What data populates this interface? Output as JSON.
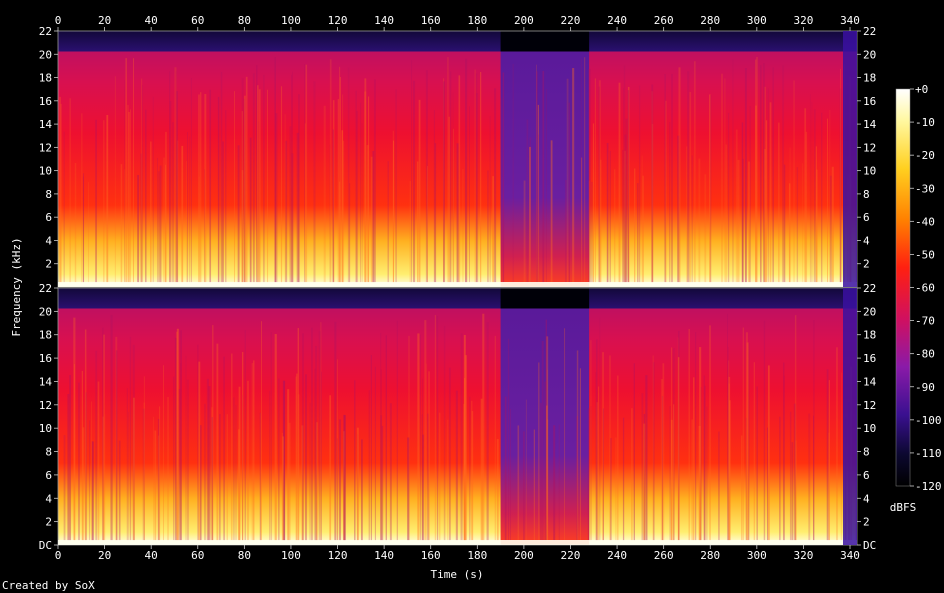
{
  "chart_data": {
    "type": "heatmap",
    "title": "",
    "xlabel": "Time (s)",
    "ylabel": "Frequency (kHz)",
    "xlim": [
      0,
      343
    ],
    "ylim": [
      0,
      22
    ],
    "x_ticks": [
      "0",
      "20",
      "40",
      "60",
      "80",
      "100",
      "120",
      "140",
      "160",
      "180",
      "200",
      "220",
      "240",
      "260",
      "280",
      "300",
      "320",
      "340"
    ],
    "y_ticks_left_top": [
      "22",
      "20",
      "18",
      "16",
      "14",
      "12",
      "10",
      "8",
      "6",
      "4",
      "2"
    ],
    "y_ticks_left_bottom": [
      "22",
      "20",
      "18",
      "16",
      "14",
      "12",
      "10",
      "8",
      "6",
      "4",
      "2",
      "DC"
    ],
    "y_ticks_right_top": [
      "22",
      "20",
      "18",
      "16",
      "14",
      "12",
      "10",
      "8",
      "6",
      "4",
      "2"
    ],
    "y_ticks_right_bottom": [
      "22",
      "20",
      "18",
      "16",
      "14",
      "12",
      "10",
      "8",
      "6",
      "4",
      "2",
      "DC"
    ],
    "colorbar": {
      "unit": "dBFS",
      "ticks": [
        "+0",
        "-10",
        "-20",
        "-30",
        "-40",
        "-50",
        "-60",
        "-70",
        "-80",
        "-90",
        "-100",
        "-110",
        "-120"
      ],
      "range": [
        -120,
        0
      ]
    },
    "series": [
      {
        "channel": 1
      },
      {
        "channel": 2
      }
    ],
    "quiet_segments_s": [
      [
        190,
        228
      ]
    ],
    "cutoff_khz": 20,
    "colors": {
      "loud": "#ffffe0",
      "mid": "#ff2020",
      "quiet": "#5020a0",
      "silent": "#000010"
    }
  },
  "footer": {
    "credit": "Created by SoX"
  }
}
